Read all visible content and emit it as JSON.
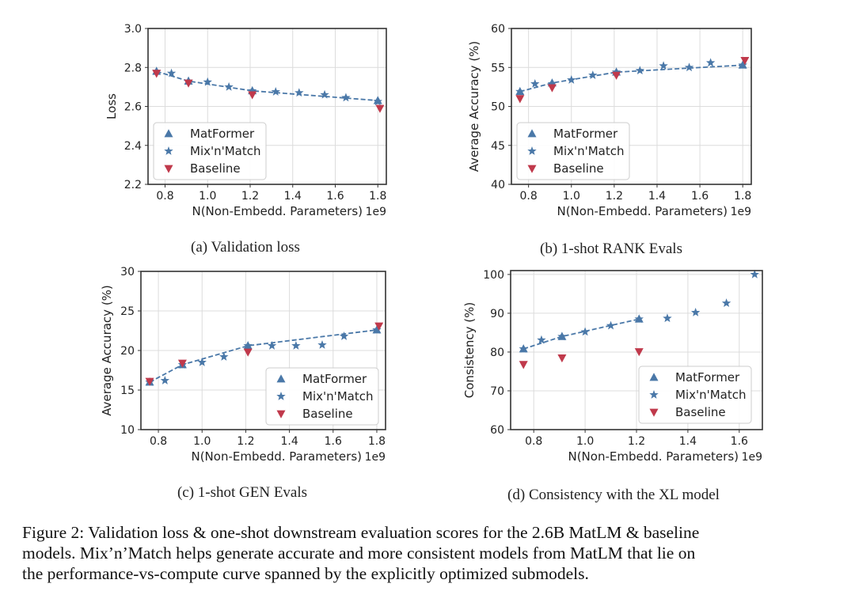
{
  "colors": {
    "matformer": "#4a78a8",
    "mixnmatch": "#4a78a8",
    "baseline": "#c0394b",
    "grid": "#dcdcdc",
    "frame": "#333333"
  },
  "chart_data": [
    {
      "type": "scatter",
      "caption": "(a) Validation loss",
      "xlabel": "N(Non-Embedd. Parameters)",
      "x_offset_text": "1e9",
      "ylabel": "Loss",
      "xlim": [
        0.72,
        1.84
      ],
      "ylim": [
        2.2,
        3.0
      ],
      "xticks": [
        0.8,
        1.0,
        1.2,
        1.4,
        1.6,
        1.8
      ],
      "xtick_labels": [
        "0.8",
        "1.0",
        "1.2",
        "1.4",
        "1.6",
        "1.8"
      ],
      "yticks": [
        2.2,
        2.4,
        2.6,
        2.8,
        3.0
      ],
      "ytick_labels": [
        "2.2",
        "2.4",
        "2.6",
        "2.8",
        "3.0"
      ],
      "grid": true,
      "legend": "lower-left",
      "series": [
        {
          "name": "MatFormer",
          "marker": "triangle",
          "x": [
            0.76,
            0.91,
            1.21,
            1.8
          ],
          "y": [
            2.78,
            2.73,
            2.68,
            2.63
          ]
        },
        {
          "name": "Mix'n'Match",
          "marker": "star",
          "x": [
            0.76,
            0.83,
            0.91,
            1.0,
            1.1,
            1.21,
            1.32,
            1.43,
            1.55,
            1.65,
            1.8
          ],
          "y": [
            2.78,
            2.77,
            2.73,
            2.725,
            2.7,
            2.68,
            2.675,
            2.67,
            2.66,
            2.645,
            2.625
          ]
        },
        {
          "name": "Baseline",
          "marker": "triangle-down",
          "x": [
            0.76,
            0.91,
            1.21,
            1.81
          ],
          "y": [
            2.77,
            2.72,
            2.66,
            2.59
          ]
        }
      ],
      "dashed_line": {
        "x": [
          0.76,
          0.91,
          1.21,
          1.8
        ],
        "y": [
          2.78,
          2.73,
          2.68,
          2.63
        ]
      }
    },
    {
      "type": "scatter",
      "caption": "(b) 1-shot RANK Evals",
      "xlabel": "N(Non-Embedd. Parameters)",
      "x_offset_text": "1e9",
      "ylabel": "Average Accuracy (%)",
      "xlim": [
        0.72,
        1.84
      ],
      "ylim": [
        40,
        60
      ],
      "xticks": [
        0.8,
        1.0,
        1.2,
        1.4,
        1.6,
        1.8
      ],
      "xtick_labels": [
        "0.8",
        "1.0",
        "1.2",
        "1.4",
        "1.6",
        "1.8"
      ],
      "yticks": [
        40,
        45,
        50,
        55,
        60
      ],
      "ytick_labels": [
        "40",
        "45",
        "50",
        "55",
        "60"
      ],
      "grid": true,
      "legend": "lower-left",
      "series": [
        {
          "name": "MatFormer",
          "marker": "triangle",
          "x": [
            0.76,
            0.91,
            1.21,
            1.8
          ],
          "y": [
            51.9,
            53.0,
            54.4,
            55.3
          ]
        },
        {
          "name": "Mix'n'Match",
          "marker": "star",
          "x": [
            0.76,
            0.83,
            0.91,
            1.0,
            1.1,
            1.21,
            1.32,
            1.43,
            1.55,
            1.65,
            1.8
          ],
          "y": [
            51.9,
            52.9,
            52.9,
            53.4,
            54.0,
            54.4,
            54.6,
            55.2,
            55.0,
            55.6,
            55.3
          ]
        },
        {
          "name": "Baseline",
          "marker": "triangle-down",
          "x": [
            0.76,
            0.91,
            1.21,
            1.81
          ],
          "y": [
            51.0,
            52.4,
            54.0,
            55.9
          ]
        }
      ],
      "dashed_line": {
        "x": [
          0.76,
          0.91,
          1.21,
          1.8
        ],
        "y": [
          51.9,
          53.0,
          54.4,
          55.3
        ]
      }
    },
    {
      "type": "scatter",
      "caption": "(c) 1-shot GEN Evals",
      "xlabel": "N(Non-Embedd. Parameters)",
      "x_offset_text": "1e9",
      "ylabel": "Average Accuracy (%)",
      "xlim": [
        0.72,
        1.84
      ],
      "ylim": [
        10,
        30
      ],
      "xticks": [
        0.8,
        1.0,
        1.2,
        1.4,
        1.6,
        1.8
      ],
      "xtick_labels": [
        "0.8",
        "1.0",
        "1.2",
        "1.4",
        "1.6",
        "1.8"
      ],
      "yticks": [
        10,
        15,
        20,
        25,
        30
      ],
      "ytick_labels": [
        "10",
        "15",
        "20",
        "25",
        "30"
      ],
      "grid": true,
      "legend": "lower-right",
      "series": [
        {
          "name": "MatFormer",
          "marker": "triangle",
          "x": [
            0.76,
            0.91,
            1.21,
            1.8
          ],
          "y": [
            16.0,
            18.2,
            20.6,
            22.6
          ]
        },
        {
          "name": "Mix'n'Match",
          "marker": "star",
          "x": [
            0.76,
            0.83,
            0.91,
            1.0,
            1.1,
            1.21,
            1.32,
            1.43,
            1.55,
            1.65,
            1.8
          ],
          "y": [
            16.0,
            16.2,
            18.2,
            18.5,
            19.2,
            20.6,
            20.6,
            20.6,
            20.7,
            21.8,
            22.6
          ]
        },
        {
          "name": "Baseline",
          "marker": "triangle-down",
          "x": [
            0.76,
            0.91,
            1.21,
            1.81
          ],
          "y": [
            16.1,
            18.4,
            19.8,
            23.1
          ]
        }
      ],
      "dashed_line": {
        "x": [
          0.76,
          0.91,
          1.21,
          1.8
        ],
        "y": [
          16.0,
          18.2,
          20.6,
          22.6
        ]
      }
    },
    {
      "type": "scatter",
      "caption": "(d) Consistency with the XL model",
      "xlabel": "N(Non-Embedd. Parameters)",
      "x_offset_text": "1e9",
      "ylabel": "Consistency (%)",
      "xlim": [
        0.71,
        1.69
      ],
      "ylim": [
        60,
        101
      ],
      "xticks": [
        0.8,
        1.0,
        1.2,
        1.4,
        1.6
      ],
      "xtick_labels": [
        "0.8",
        "1.0",
        "1.2",
        "1.4",
        "1.6"
      ],
      "yticks": [
        60,
        70,
        80,
        90,
        100
      ],
      "ytick_labels": [
        "60",
        "70",
        "80",
        "90",
        "100"
      ],
      "grid": true,
      "legend": "lower-right",
      "series": [
        {
          "name": "MatFormer",
          "marker": "triangle",
          "x": [
            0.76,
            0.91,
            1.21
          ],
          "y": [
            80.8,
            84.0,
            88.5
          ]
        },
        {
          "name": "Mix'n'Match",
          "marker": "star",
          "x": [
            0.76,
            0.83,
            0.91,
            1.0,
            1.1,
            1.21,
            1.32,
            1.43,
            1.55,
            1.66
          ],
          "y": [
            80.8,
            83.1,
            84.0,
            85.2,
            86.8,
            88.5,
            88.7,
            90.2,
            92.6,
            100.0
          ]
        },
        {
          "name": "Baseline",
          "marker": "triangle-down",
          "x": [
            0.76,
            0.91,
            1.21
          ],
          "y": [
            76.8,
            78.5,
            80.1
          ]
        }
      ],
      "dashed_line": {
        "x": [
          0.76,
          0.91,
          1.21
        ],
        "y": [
          80.8,
          84.0,
          88.5
        ]
      }
    }
  ],
  "figure_caption": [
    "Figure 2: Validation loss & one-shot downstream evaluation scores for the 2.6B MatLM & baseline",
    "models. Mix’n’Match helps generate accurate and more consistent models from MatLM that lie on",
    "the performance-vs-compute curve spanned by the explicitly optimized submodels."
  ]
}
